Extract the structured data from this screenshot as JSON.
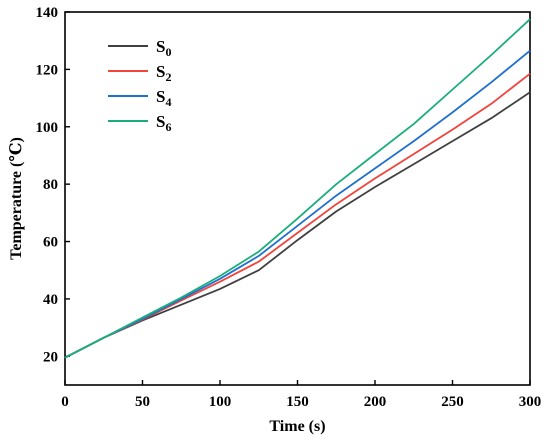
{
  "chart_data": {
    "type": "line",
    "xlabel": "Time (s)",
    "ylabel": "Temperature (℃)",
    "xlim": [
      0,
      300
    ],
    "ylim": [
      10,
      140
    ],
    "xticks": [
      0,
      50,
      100,
      150,
      200,
      250,
      300
    ],
    "yticks": [
      20,
      40,
      60,
      80,
      100,
      120,
      140
    ],
    "grid": false,
    "legend_position": "top-left",
    "x": [
      0,
      25,
      50,
      75,
      100,
      125,
      150,
      175,
      200,
      225,
      250,
      275,
      300
    ],
    "series": [
      {
        "base": "S",
        "sub": "0",
        "color": "#404040",
        "values": [
          19.5,
          26.5,
          32.5,
          38.0,
          43.5,
          50.0,
          60.5,
          70.5,
          79.0,
          87.0,
          95.0,
          103.0,
          112.0
        ]
      },
      {
        "base": "S",
        "sub": "2",
        "color": "#f0443c",
        "values": [
          19.5,
          26.5,
          32.8,
          39.5,
          46.0,
          53.0,
          63.0,
          73.0,
          82.0,
          90.5,
          99.0,
          108.0,
          118.5
        ]
      },
      {
        "base": "S",
        "sub": "4",
        "color": "#1f6fd1",
        "values": [
          19.5,
          26.5,
          33.0,
          40.0,
          47.0,
          55.0,
          65.5,
          76.0,
          85.5,
          95.0,
          105.0,
          115.5,
          126.5
        ]
      },
      {
        "base": "S",
        "sub": "6",
        "color": "#1aae7a",
        "values": [
          19.5,
          26.5,
          33.5,
          40.5,
          48.0,
          56.5,
          68.0,
          80.0,
          90.5,
          101.0,
          113.0,
          125.0,
          137.5
        ]
      }
    ]
  }
}
